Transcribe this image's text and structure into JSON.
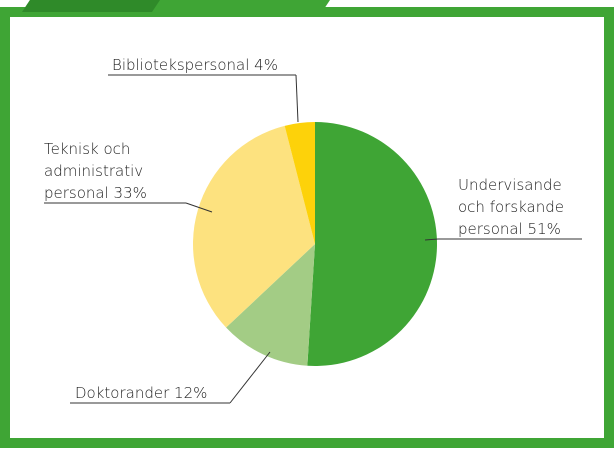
{
  "chart_data": {
    "type": "pie",
    "labels": [
      [
        "Undervisande",
        "och forskande",
        "personal 51%"
      ],
      [
        "Doktorander 12%"
      ],
      [
        "Teknisk och",
        "administrativ",
        "personal 33%"
      ],
      [
        "Bibliotekspersonal 4%"
      ]
    ],
    "values": [
      51,
      12,
      33,
      4
    ],
    "colors": [
      "#3fa535",
      "#a3cc85",
      "#fde27f",
      "#fdd20a"
    ]
  }
}
